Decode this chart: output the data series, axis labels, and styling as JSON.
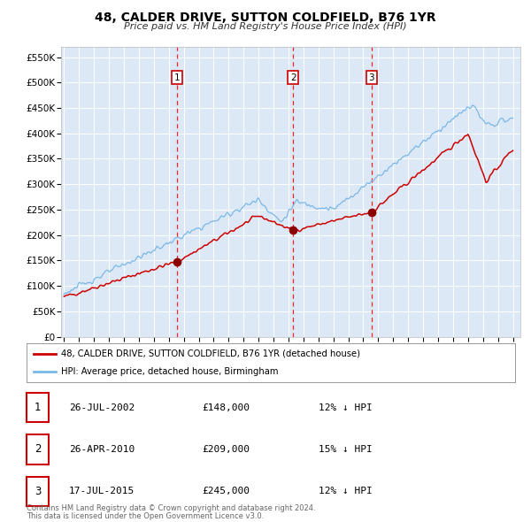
{
  "title": "48, CALDER DRIVE, SUTTON COLDFIELD, B76 1YR",
  "subtitle": "Price paid vs. HM Land Registry's House Price Index (HPI)",
  "bg_color": "#dce8f5",
  "red_line_label": "48, CALDER DRIVE, SUTTON COLDFIELD, B76 1YR (detached house)",
  "blue_line_label": "HPI: Average price, detached house, Birmingham",
  "sales": [
    {
      "label": "1",
      "date": "26-JUL-2002",
      "date_num": 2002.57,
      "price": 148000,
      "hpi_pct": "12% ↓ HPI"
    },
    {
      "label": "2",
      "date": "26-APR-2010",
      "date_num": 2010.32,
      "price": 209000,
      "hpi_pct": "15% ↓ HPI"
    },
    {
      "label": "3",
      "date": "17-JUL-2015",
      "date_num": 2015.54,
      "price": 245000,
      "hpi_pct": "12% ↓ HPI"
    }
  ],
  "ylim": [
    0,
    570000
  ],
  "yticks": [
    0,
    50000,
    100000,
    150000,
    200000,
    250000,
    300000,
    350000,
    400000,
    450000,
    500000,
    550000
  ],
  "xlim_start": 1994.8,
  "xlim_end": 2025.5,
  "footer_line1": "Contains HM Land Registry data © Crown copyright and database right 2024.",
  "footer_line2": "This data is licensed under the Open Government Licence v3.0."
}
